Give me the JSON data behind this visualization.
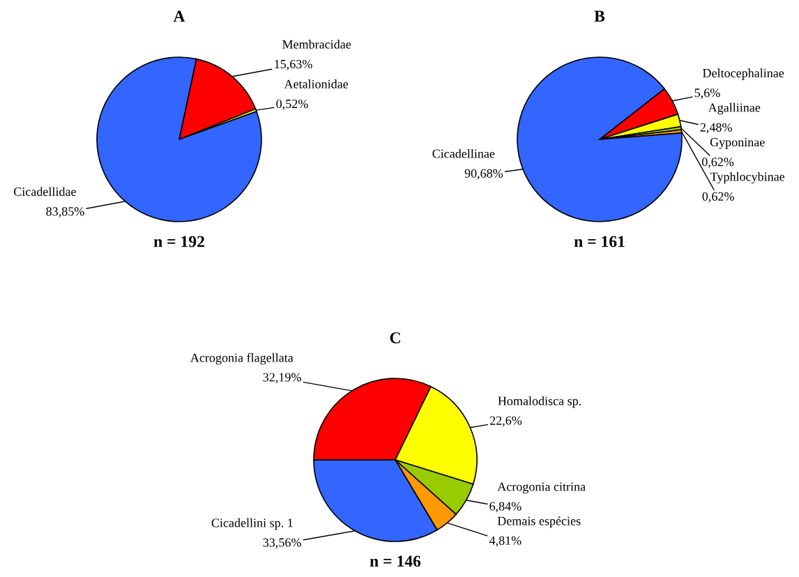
{
  "chart_data": [
    {
      "type": "pie",
      "title": "A",
      "categories": [
        "Membracidae",
        "Aetalionidae",
        "Cicadellidae"
      ],
      "values": [
        15.63,
        0.52,
        83.85
      ],
      "value_labels": [
        "15,63%",
        "0,52%",
        "83,85%"
      ],
      "colors": [
        "#ff0000",
        "#ffff00",
        "#3366ff"
      ],
      "annotations": [
        "n = 192"
      ]
    },
    {
      "type": "pie",
      "title": "B",
      "categories": [
        "Deltocephalinae",
        "Agalliinae",
        "Gyponinae",
        "Typhlocybinae",
        "Cicadellinae"
      ],
      "values": [
        5.6,
        2.48,
        0.62,
        0.62,
        90.68
      ],
      "value_labels": [
        "5,6%",
        "2,48%",
        "0,62%",
        "0,62%",
        "90,68%"
      ],
      "colors": [
        "#ff0000",
        "#ffff00",
        "#99cc00",
        "#ff9900",
        "#3366ff"
      ],
      "annotations": [
        "n = 161"
      ]
    },
    {
      "type": "pie",
      "title": "C",
      "categories": [
        "Acrogonia flagellata",
        "Homalodisca sp.",
        "Acrogonia citrina",
        "Demais espécies",
        "Cicadellini sp. 1"
      ],
      "values": [
        32.19,
        22.6,
        6.84,
        4.81,
        33.56
      ],
      "value_labels": [
        "32,19%",
        "22,6%",
        "6,84%",
        "4,81%",
        "33,56%"
      ],
      "colors": [
        "#ff0000",
        "#ffff00",
        "#99cc00",
        "#ff9900",
        "#3366ff"
      ],
      "annotations": [
        "n = 146"
      ]
    }
  ]
}
